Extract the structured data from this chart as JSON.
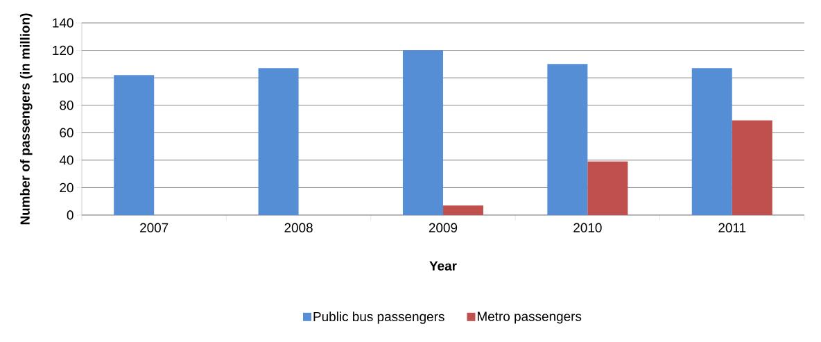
{
  "chart_data": {
    "type": "bar",
    "xlabel": "Year",
    "ylabel": "Number of passengers (in million)",
    "categories": [
      "2007",
      "2008",
      "2009",
      "2010",
      "2011"
    ],
    "series": [
      {
        "name": "Public bus passengers",
        "color": "#558ed5",
        "values": [
          102,
          107,
          120,
          110,
          107
        ]
      },
      {
        "name": "Metro passengers",
        "color": "#c0504d",
        "values": [
          null,
          null,
          7,
          39,
          69
        ]
      }
    ],
    "ylim": [
      0,
      140
    ],
    "yticks": [
      0,
      20,
      40,
      60,
      80,
      100,
      120,
      140
    ],
    "grid": "y",
    "legend": "bottom"
  }
}
